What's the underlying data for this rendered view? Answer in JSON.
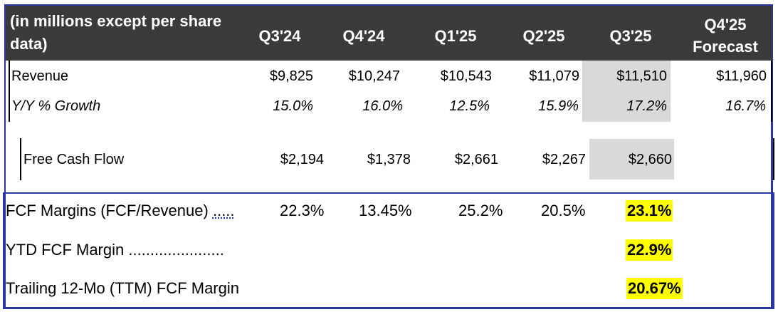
{
  "header": {
    "label": "(in millions except per share data)",
    "columns": [
      "Q3'24",
      "Q4'24",
      "Q1'25",
      "Q2'25",
      "Q3'25"
    ],
    "forecast_line1": "Q4'25",
    "forecast_line2": "Forecast"
  },
  "rows": {
    "revenue": {
      "label": "Revenue",
      "values": [
        "$9,825",
        "$10,247",
        "$10,543",
        "$11,079",
        "$11,510",
        "$11,960"
      ]
    },
    "growth": {
      "label": "Y/Y % Growth",
      "values": [
        "15.0%",
        "16.0%",
        "12.5%",
        "15.9%",
        "17.2%",
        "16.7%"
      ]
    },
    "fcf": {
      "label": "Free Cash Flow",
      "values": [
        "$2,194",
        "$1,378",
        "$2,661",
        "$2,267",
        "$2,660"
      ]
    }
  },
  "margins": {
    "fcf_margin": {
      "label": "FCF Margins (FCF/Revenue)",
      "dots": ".....",
      "values": [
        "22.3%",
        "13.45%",
        "25.2%",
        "20.5%"
      ],
      "highlight": "23.1%"
    },
    "ytd": {
      "label": "YTD FCF Margin ......................",
      "highlight": "22.9%"
    },
    "ttm": {
      "label": "Trailing 12-Mo (TTM) FCF Margin",
      "highlight": "20.67%"
    }
  },
  "colors": {
    "header_bg": "#3a3a3a",
    "shade": "#d9d9d9",
    "highlight": "#ffff00",
    "border": "#2b35a8"
  }
}
